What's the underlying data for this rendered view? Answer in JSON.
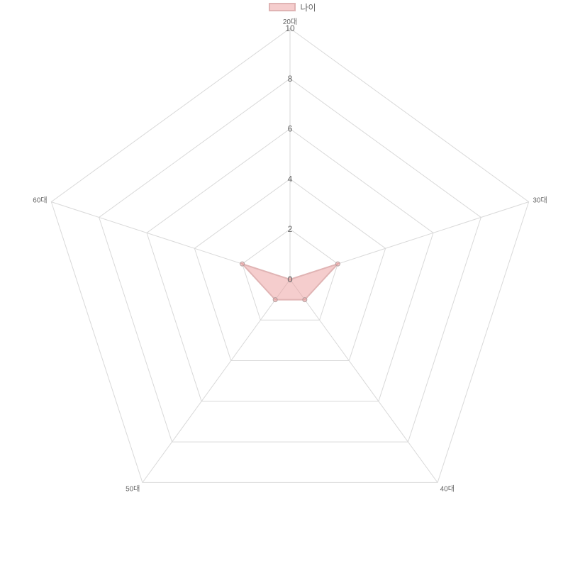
{
  "chart_data": {
    "type": "radar",
    "categories": [
      "20대",
      "30대",
      "40대",
      "50대",
      "60대"
    ],
    "series": [
      {
        "name": "나이",
        "values": [
          0,
          2,
          1,
          1,
          2
        ]
      }
    ],
    "rlim": [
      0,
      10
    ],
    "ticks": [
      "0",
      "2",
      "4",
      "6",
      "8",
      "10"
    ],
    "grid": true,
    "legend_position": "top"
  },
  "colors": {
    "series_fill": "rgba(235,155,155,0.5)",
    "series_stroke": "#e0b4b4",
    "point": "#b4a0a0",
    "grid": "#d9d9d9"
  }
}
